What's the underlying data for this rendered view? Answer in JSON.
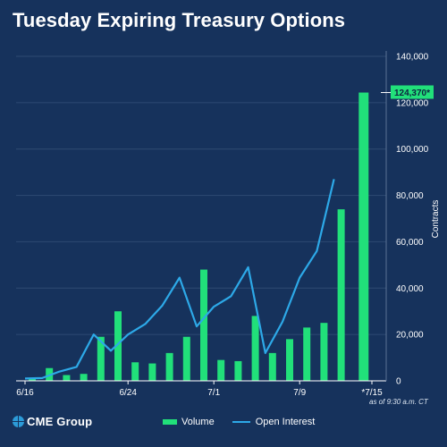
{
  "page": {
    "title": "Tuesday Expiring Treasury Options",
    "brand": "CME Group",
    "timestamp_note": "as of 9:30 a.m. CT",
    "colors": {
      "background": "#16325c",
      "volume_bar": "#21e07a",
      "open_interest_line": "#2da9e8",
      "grid": "#2e4a72"
    }
  },
  "legend": {
    "volume_label": "Volume",
    "open_interest_label": "Open Interest"
  },
  "chart_data": {
    "type": "bar",
    "title": "Tuesday Expiring Treasury Options",
    "ylabel": "Contracts",
    "ylim": [
      0,
      140000
    ],
    "yticks": [
      "0",
      "20,000",
      "40,000",
      "60,000",
      "80,000",
      "100,000",
      "120,000",
      "140,000"
    ],
    "ytick_values": [
      0,
      20000,
      40000,
      60000,
      80000,
      100000,
      120000,
      140000
    ],
    "y_axis_side": "right",
    "grid": true,
    "x_tick_labels": [
      {
        "index": 0,
        "label": "6/16"
      },
      {
        "index": 6,
        "label": "6/24"
      },
      {
        "index": 11,
        "label": "7/1"
      },
      {
        "index": 16,
        "label": "7/9"
      },
      {
        "index": 20,
        "label": "*7/15"
      }
    ],
    "n_days": 21,
    "series": [
      {
        "name": "Volume",
        "type": "bar",
        "values": [
          1000,
          5500,
          2500,
          3000,
          19000,
          30000,
          8000,
          7500,
          12000,
          19000,
          48000,
          9000,
          8500,
          28000,
          12000,
          18000,
          23000,
          25000,
          74000,
          124370
        ]
      },
      {
        "name": "Open Interest",
        "type": "line",
        "values": [
          1000,
          1200,
          4000,
          6000,
          20000,
          13000,
          20000,
          24500,
          32500,
          44500,
          23500,
          32000,
          36500,
          49000,
          12000,
          25500,
          44500,
          56000,
          87000
        ]
      }
    ],
    "volume_day_index": [
      0,
      1,
      2,
      3,
      4,
      5,
      6,
      7,
      8,
      9,
      10,
      11,
      12,
      13,
      14,
      15,
      16,
      17,
      18,
      19
    ],
    "open_interest_day_index": [
      0,
      1,
      2,
      3,
      4,
      5,
      6,
      7,
      8,
      9,
      10,
      11,
      12,
      13,
      14,
      15,
      16,
      17,
      18
    ],
    "callout": {
      "label": "124,370*",
      "value": 124370
    }
  }
}
